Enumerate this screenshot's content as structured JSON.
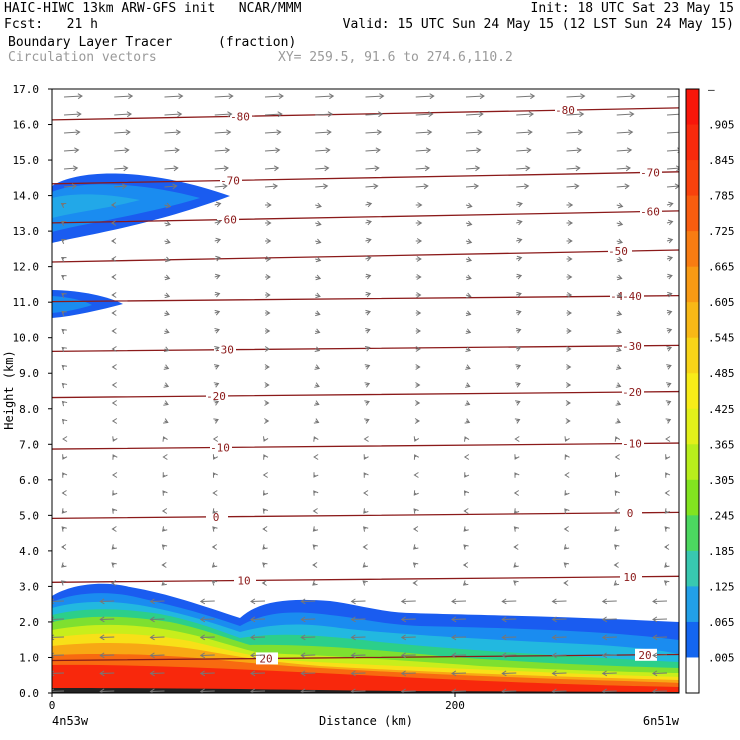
{
  "header": {
    "line1_left": "HAIC-HIWC 13km ARW-GFS init   NCAR/MMM",
    "line1_right": "Init: 18 UTC Sat 23 May 15",
    "line2_left": "Fcst:   21 h",
    "line2_right": "Valid: 15 UTC Sun 24 May 15 (12 LST Sun 24 May 15)",
    "field_name": "Boundary Layer Tracer",
    "field_units": "(fraction)",
    "vector_name": "Circulation vectors",
    "xy_text": "XY= 259.5, 91.6 to 274.6,110.2"
  },
  "bottom": {
    "left_label": "4n53w",
    "right_label": "6n51w"
  },
  "colors": {
    "contour": "#8b1a1a",
    "vector": "#777777",
    "frame": "#000000"
  },
  "chart_data": {
    "type": "cross-section",
    "xlabel": "Distance (km)",
    "ylabel": "Height (km)",
    "x_ticks": [
      "0",
      "200"
    ],
    "ylim": [
      0,
      17
    ],
    "y_ticks": [
      "0.0",
      "1.0",
      "2.0",
      "3.0",
      "4.0",
      "5.0",
      "6.0",
      "7.0",
      "8.0",
      "9.0",
      "10.0",
      "11.0",
      "12.0",
      "13.0",
      "14.0",
      "15.0",
      "16.0",
      "17.0"
    ],
    "colorbar": {
      "labels": [
        "–",
        ".905",
        ".845",
        ".785",
        ".725",
        ".665",
        ".605",
        ".545",
        ".485",
        ".425",
        ".365",
        ".305",
        ".245",
        ".185",
        ".125",
        ".065",
        ".005"
      ],
      "colors": [
        "#f8160a",
        "#f82a0c",
        "#f8420d",
        "#f85d10",
        "#f87c12",
        "#f89a14",
        "#f8b816",
        "#f8d418",
        "#f8ec18",
        "#e2f01a",
        "#b8ee1c",
        "#82e420",
        "#4cd860",
        "#38c8b0",
        "#22a0e8",
        "#1466f0",
        "#ffffff"
      ]
    },
    "isotherms": [
      {
        "label": "-80",
        "y": 16.3
      },
      {
        "label": "-70",
        "y": 14.5
      },
      {
        "label": "-60",
        "y": 13.4
      },
      {
        "label": "-50",
        "y": 12.3
      },
      {
        "label": "-40",
        "y": 11.1
      },
      {
        "label": "-30",
        "y": 9.7
      },
      {
        "label": "-20",
        "y": 8.4
      },
      {
        "label": "-10",
        "y": 6.95
      },
      {
        "label": "0",
        "y": 5.0
      },
      {
        "label": "10",
        "y": 3.2
      },
      {
        "label": "20",
        "y": 1.0
      }
    ],
    "tracer_features": [
      {
        "name": "upper layer near 14 km",
        "value": ".065-.185",
        "ymin": 12.7,
        "ymax": 14.6
      },
      {
        "name": "upper layer near 11 km",
        "value": ".065-.125",
        "ymin": 10.55,
        "ymax": 11.3
      },
      {
        "name": "boundary layer",
        "value": ".065-.905+",
        "ymin": 0.0,
        "ymax": 3.1
      }
    ]
  }
}
